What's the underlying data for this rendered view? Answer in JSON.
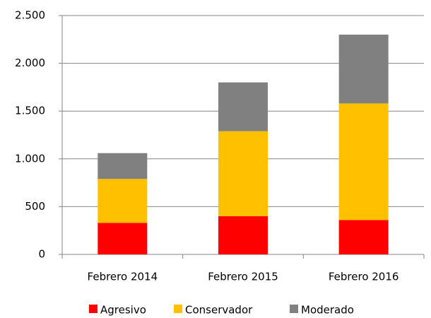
{
  "chart_data": {
    "type": "stacked_bar",
    "categories": [
      "Febrero 2014",
      "Febrero 2015",
      "Febrero 2016"
    ],
    "series": [
      {
        "name": "Agresivo",
        "color": "#ff0000",
        "values": [
          330,
          400,
          360
        ]
      },
      {
        "name": "Conservador",
        "color": "#ffc000",
        "values": [
          460,
          890,
          1220
        ]
      },
      {
        "name": "Moderado",
        "color": "#808080",
        "values": [
          270,
          510,
          720
        ]
      }
    ],
    "ylim": [
      0,
      2500
    ],
    "yticks": [
      0,
      500,
      {
        "value": 1000,
        "label": "1.000"
      },
      {
        "value": 1500,
        "label": "1.500"
      },
      {
        "value": 2000,
        "label": "2.000"
      },
      {
        "value": 2500,
        "label": "2.500"
      }
    ],
    "grid": true,
    "legend": "bottom"
  }
}
